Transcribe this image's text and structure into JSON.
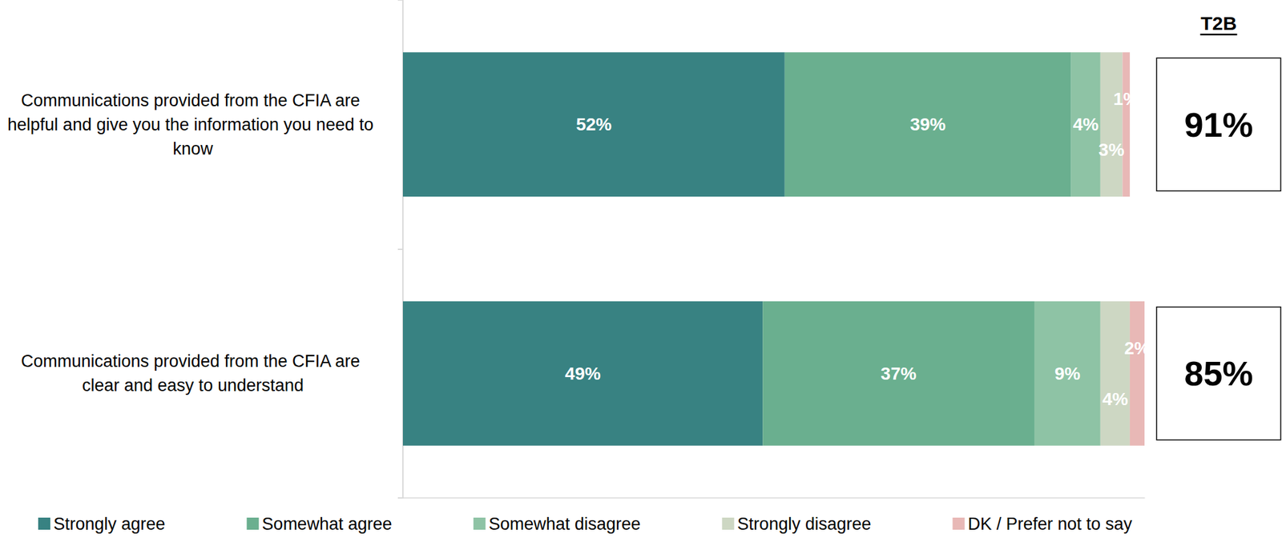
{
  "chart_data": {
    "type": "bar",
    "orientation": "horizontal",
    "stacked": true,
    "data_labels": true,
    "grid": false,
    "legend": "bottom",
    "tick_labels": "y",
    "categories": [
      "Communications provided from the CFIA are helpful and give you the information you need to know",
      "Communications provided from the CFIA are clear and easy to understand"
    ],
    "xlim": [
      0,
      101
    ],
    "series": [
      {
        "name": "Strongly agree",
        "color": "#388282",
        "values": [
          52,
          49
        ],
        "value_labels": [
          "52%",
          "49%"
        ]
      },
      {
        "name": "Somewhat agree",
        "color": "#6aaf8f",
        "values": [
          39,
          37
        ],
        "value_labels": [
          "39%",
          "37%"
        ]
      },
      {
        "name": "Somewhat disagree",
        "color": "#8ec3a5",
        "values": [
          4,
          9
        ],
        "value_labels": [
          "4%",
          "9%"
        ]
      },
      {
        "name": "Strongly disagree",
        "color": "#cdd7c3",
        "values": [
          3,
          4
        ],
        "value_labels": [
          "3%",
          "4%"
        ]
      },
      {
        "name": "DK / Prefer not to say",
        "color": "#e8b8b6",
        "values": [
          1,
          2
        ],
        "value_labels": [
          "1%",
          "2%"
        ]
      }
    ],
    "t2b": {
      "title": "T2B",
      "values": [
        91,
        85
      ],
      "value_labels": [
        "91%",
        "85%"
      ]
    }
  }
}
